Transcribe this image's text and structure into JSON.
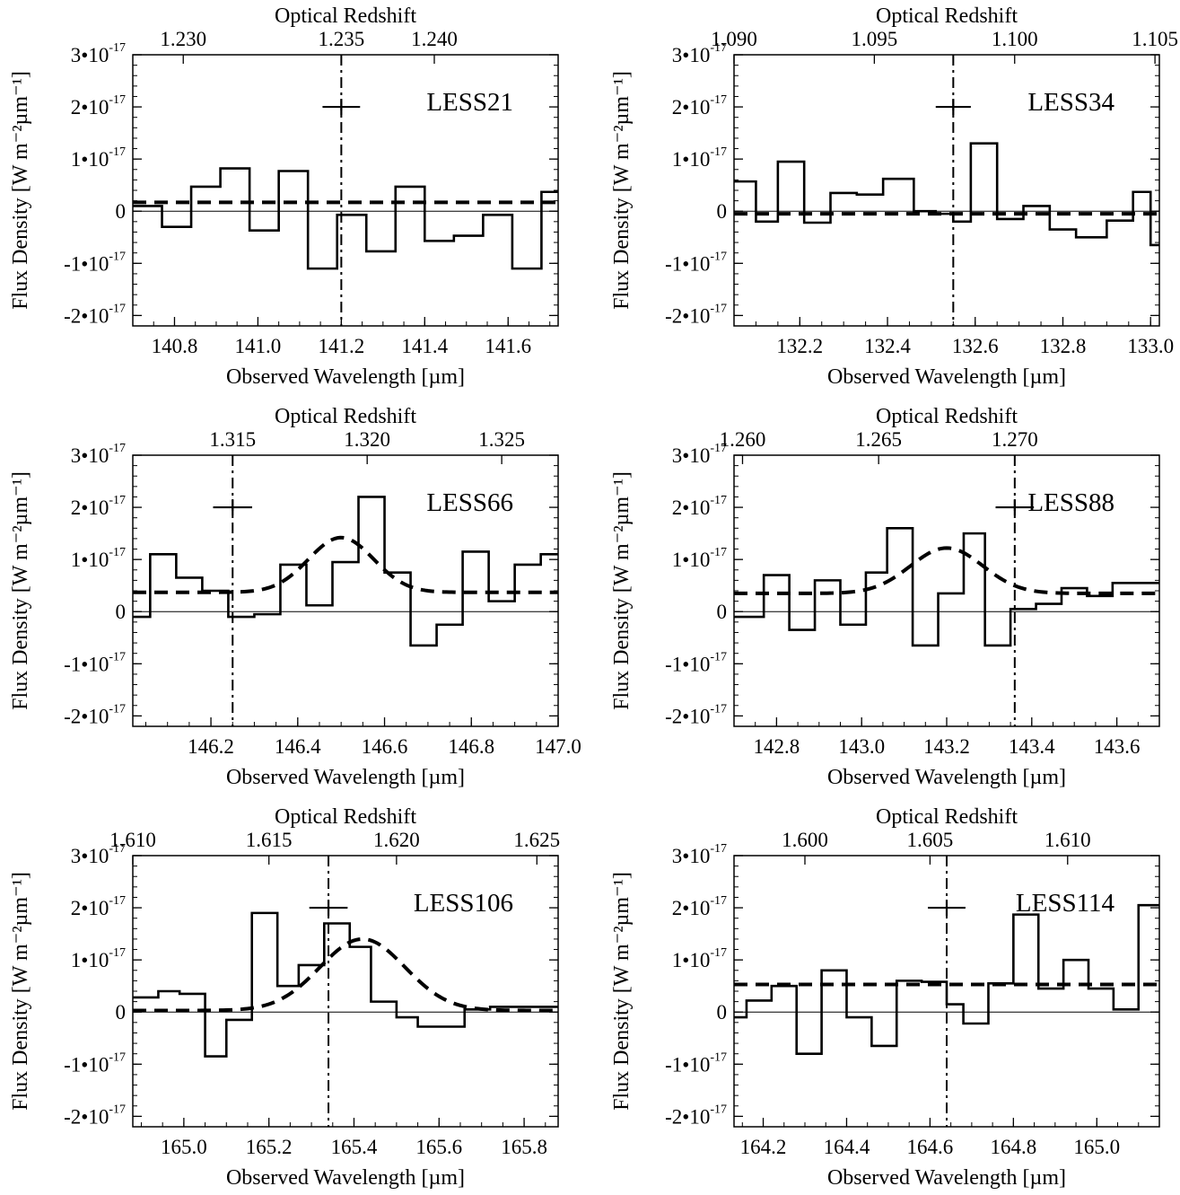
{
  "figure": {
    "y_axis_title": "Flux Density [W m⁻²µm⁻¹]",
    "x_axis_title": "Observed Wavelength [µm]",
    "top_axis_title": "Optical Redshift"
  },
  "chart_data": [
    {
      "type": "line",
      "label": "LESS21",
      "xlim": [
        140.7,
        141.72
      ],
      "ylim": [
        -2.2e-17,
        3e-17
      ],
      "yticks": [
        -2e-17,
        -1e-17,
        0,
        1e-17,
        2e-17,
        3e-17
      ],
      "ytick_labels": [
        "-2•10",
        "-1•10",
        "0",
        "1•10",
        "2•10",
        "3•10"
      ],
      "ytick_exponent": "-17",
      "xticks": [
        140.8,
        141.0,
        141.2,
        141.4,
        141.6
      ],
      "xtick_labels": [
        "140.8",
        "141.0",
        "141.2",
        "141.4",
        "141.6"
      ],
      "top_ticks": [
        140.821,
        141.2,
        141.423
      ],
      "top_tick_labels": [
        "1.230",
        "1.235",
        "1.240"
      ],
      "step_x": [
        140.7,
        140.77,
        140.84,
        140.91,
        140.98,
        141.05,
        141.12,
        141.19,
        141.26,
        141.33,
        141.4,
        141.47,
        141.54,
        141.61,
        141.68,
        141.72
      ],
      "step_y": [
        1e-18,
        -3e-18,
        4.7e-18,
        8.2e-18,
        -3.7e-18,
        7.7e-18,
        -1.1e-17,
        -7e-19,
        -7.7e-18,
        4.7e-18,
        -5.7e-18,
        -4.7e-18,
        -7e-19,
        -1.1e-17,
        3.7e-18,
        -3e-18
      ],
      "fit": {
        "baseline": 1.7e-18,
        "amplitude": 0,
        "center": 141.2,
        "sigma": 0.1
      },
      "vline_x": 141.2,
      "marker": {
        "x": 141.2,
        "y": 2e-17,
        "half_width": 0.045
      }
    },
    {
      "type": "line",
      "label": "LESS34",
      "xlim": [
        132.05,
        133.02
      ],
      "ylim": [
        -2.2e-17,
        3e-17
      ],
      "yticks": [
        -2e-17,
        -1e-17,
        0,
        1e-17,
        2e-17,
        3e-17
      ],
      "ytick_labels": [
        "-2•10",
        "-1•10",
        "0",
        "1•10",
        "2•10",
        "3•10"
      ],
      "ytick_exponent": "-17",
      "xticks": [
        132.2,
        132.4,
        132.6,
        132.8,
        133.0
      ],
      "xtick_labels": [
        "132.2",
        "132.4",
        "132.6",
        "132.8",
        "133.0"
      ],
      "top_ticks": [
        132.05,
        132.37,
        132.69,
        133.01
      ],
      "top_tick_labels": [
        "1.090",
        "1.095",
        "1.100",
        "1.105"
      ],
      "step_x": [
        132.05,
        132.1,
        132.15,
        132.21,
        132.27,
        132.33,
        132.39,
        132.46,
        132.51,
        132.55,
        132.59,
        132.65,
        132.71,
        132.77,
        132.83,
        132.9,
        132.96,
        133.0,
        133.02
      ],
      "step_y": [
        5.7e-18,
        -2e-18,
        9.5e-18,
        -2.2e-18,
        3.5e-18,
        3.2e-18,
        6.2e-18,
        0.0,
        -5e-19,
        -2e-18,
        1.3e-17,
        -1.5e-18,
        1e-18,
        -3.5e-18,
        -5e-18,
        -1.8e-18,
        3.7e-18,
        -6.5e-18,
        -6.5e-18
      ],
      "fit": {
        "baseline": -5e-19,
        "amplitude": 0,
        "center": 132.55,
        "sigma": 0.1
      },
      "vline_x": 132.55,
      "marker": {
        "x": 132.55,
        "y": 2e-17,
        "half_width": 0.04
      }
    },
    {
      "type": "line",
      "label": "LESS66",
      "xlim": [
        146.02,
        147.0
      ],
      "ylim": [
        -2.2e-17,
        3e-17
      ],
      "yticks": [
        -2e-17,
        -1e-17,
        0,
        1e-17,
        2e-17,
        3e-17
      ],
      "ytick_labels": [
        "-2•10",
        "-1•10",
        "0",
        "1•10",
        "2•10",
        "3•10"
      ],
      "ytick_exponent": "-17",
      "xticks": [
        146.2,
        146.4,
        146.6,
        146.8,
        147.0
      ],
      "xtick_labels": [
        "146.2",
        "146.4",
        "146.6",
        "146.8",
        "147.0"
      ],
      "top_ticks": [
        146.25,
        146.56,
        146.87
      ],
      "top_tick_labels": [
        "1.315",
        "1.320",
        "1.325"
      ],
      "step_x": [
        146.02,
        146.06,
        146.12,
        146.18,
        146.24,
        146.3,
        146.36,
        146.42,
        146.48,
        146.54,
        146.6,
        146.66,
        146.72,
        146.78,
        146.84,
        146.9,
        146.96,
        147.0
      ],
      "step_y": [
        -1e-18,
        1.1e-17,
        6.5e-18,
        4e-18,
        -1e-18,
        -5e-19,
        9e-18,
        1.2e-18,
        9.5e-18,
        2.2e-17,
        7.5e-18,
        -6.5e-18,
        -2.5e-18,
        1.15e-17,
        2e-18,
        9e-18,
        1.1e-17,
        1.1e-17
      ],
      "fit": {
        "baseline": 3.7e-18,
        "amplitude": 1.05e-17,
        "center": 146.5,
        "sigma": 0.075
      },
      "vline_x": 146.25,
      "marker": {
        "x": 146.25,
        "y": 2e-17,
        "half_width": 0.045
      }
    },
    {
      "type": "line",
      "label": "LESS88",
      "xlim": [
        142.7,
        143.7
      ],
      "ylim": [
        -2.2e-17,
        3e-17
      ],
      "yticks": [
        -2e-17,
        -1e-17,
        0,
        1e-17,
        2e-17,
        3e-17
      ],
      "ytick_labels": [
        "-2•10",
        "-1•10",
        "0",
        "1•10",
        "2•10",
        "3•10"
      ],
      "ytick_exponent": "-17",
      "xticks": [
        142.8,
        143.0,
        143.2,
        143.4,
        143.6
      ],
      "xtick_labels": [
        "142.8",
        "143.0",
        "143.2",
        "143.4",
        "143.6"
      ],
      "top_ticks": [
        142.72,
        143.04,
        143.36
      ],
      "top_tick_labels": [
        "1.260",
        "1.265",
        "1.270"
      ],
      "step_x": [
        142.7,
        142.77,
        142.83,
        142.89,
        142.95,
        143.01,
        143.06,
        143.12,
        143.18,
        143.24,
        143.29,
        143.35,
        143.41,
        143.47,
        143.53,
        143.59,
        143.65,
        143.7
      ],
      "step_y": [
        -1e-18,
        7e-18,
        -3.5e-18,
        6e-18,
        -2.5e-18,
        7.5e-18,
        1.6e-17,
        -6.5e-18,
        3.5e-18,
        1.5e-17,
        -6.5e-18,
        5e-19,
        1.5e-18,
        4.5e-18,
        3e-18,
        5.5e-18,
        5.5e-18,
        5.5e-18
      ],
      "fit": {
        "baseline": 3.5e-18,
        "amplitude": 8.7e-18,
        "center": 143.2,
        "sigma": 0.085
      },
      "vline_x": 143.36,
      "marker": {
        "x": 143.36,
        "y": 2e-17,
        "half_width": 0.045
      }
    },
    {
      "type": "line",
      "label": "LESS106",
      "xlim": [
        164.88,
        165.88
      ],
      "ylim": [
        -2.2e-17,
        3e-17
      ],
      "yticks": [
        -2e-17,
        -1e-17,
        0,
        1e-17,
        2e-17,
        3e-17
      ],
      "ytick_labels": [
        "-2•10",
        "-1•10",
        "0",
        "1•10",
        "2•10",
        "3•10"
      ],
      "ytick_exponent": "-17",
      "xticks": [
        165.0,
        165.2,
        165.4,
        165.6,
        165.8
      ],
      "xtick_labels": [
        "165.0",
        "165.2",
        "165.4",
        "165.6",
        "165.8"
      ],
      "top_ticks": [
        164.88,
        165.2,
        165.5,
        165.83
      ],
      "top_tick_labels": [
        "1.610",
        "1.615",
        "1.620",
        "1.625"
      ],
      "step_x": [
        164.88,
        164.94,
        164.99,
        165.05,
        165.1,
        165.16,
        165.22,
        165.27,
        165.33,
        165.39,
        165.44,
        165.5,
        165.55,
        165.61,
        165.66,
        165.72,
        165.78,
        165.83,
        165.88
      ],
      "step_y": [
        2.8e-18,
        4e-18,
        3.5e-18,
        -8.5e-18,
        -1.5e-18,
        1.9e-17,
        5e-18,
        9e-18,
        1.7e-17,
        1.25e-17,
        2e-18,
        -1e-18,
        -2.8e-18,
        -2.8e-18,
        5e-19,
        1e-18,
        1e-18,
        1e-18,
        1e-18
      ],
      "fit": {
        "baseline": 3e-19,
        "amplitude": 1.37e-17,
        "center": 165.42,
        "sigma": 0.1
      },
      "vline_x": 165.34,
      "marker": {
        "x": 165.34,
        "y": 2e-17,
        "half_width": 0.045
      }
    },
    {
      "type": "line",
      "label": "LESS114",
      "xlim": [
        164.13,
        165.15
      ],
      "ylim": [
        -2.2e-17,
        3e-17
      ],
      "yticks": [
        -2e-17,
        -1e-17,
        0,
        1e-17,
        2e-17,
        3e-17
      ],
      "ytick_labels": [
        "-2•10",
        "-1•10",
        "0",
        "1•10",
        "2•10",
        "3•10"
      ],
      "ytick_exponent": "-17",
      "xticks": [
        164.2,
        164.4,
        164.6,
        164.8,
        165.0
      ],
      "xtick_labels": [
        "164.2",
        "164.4",
        "164.6",
        "164.8",
        "165.0"
      ],
      "top_ticks": [
        164.3,
        164.6,
        164.93
      ],
      "top_tick_labels": [
        "1.600",
        "1.605",
        "1.610"
      ],
      "step_x": [
        164.13,
        164.16,
        164.22,
        164.28,
        164.34,
        164.4,
        164.46,
        164.52,
        164.58,
        164.64,
        164.68,
        164.74,
        164.8,
        164.86,
        164.92,
        164.98,
        165.04,
        165.1,
        165.15
      ],
      "step_y": [
        -1e-18,
        2.2e-18,
        5e-18,
        -8e-18,
        8e-18,
        -1e-18,
        -6.5e-18,
        6e-18,
        5.8e-18,
        1.5e-18,
        -2.2e-18,
        5.5e-18,
        1.87e-17,
        4.5e-18,
        1e-17,
        4.5e-18,
        5e-19,
        2.05e-17,
        2.05e-17
      ],
      "fit": {
        "baseline": 5.3e-18,
        "amplitude": 0,
        "center": 164.64,
        "sigma": 0.1
      },
      "vline_x": 164.64,
      "marker": {
        "x": 164.64,
        "y": 2e-17,
        "half_width": 0.045
      }
    }
  ]
}
